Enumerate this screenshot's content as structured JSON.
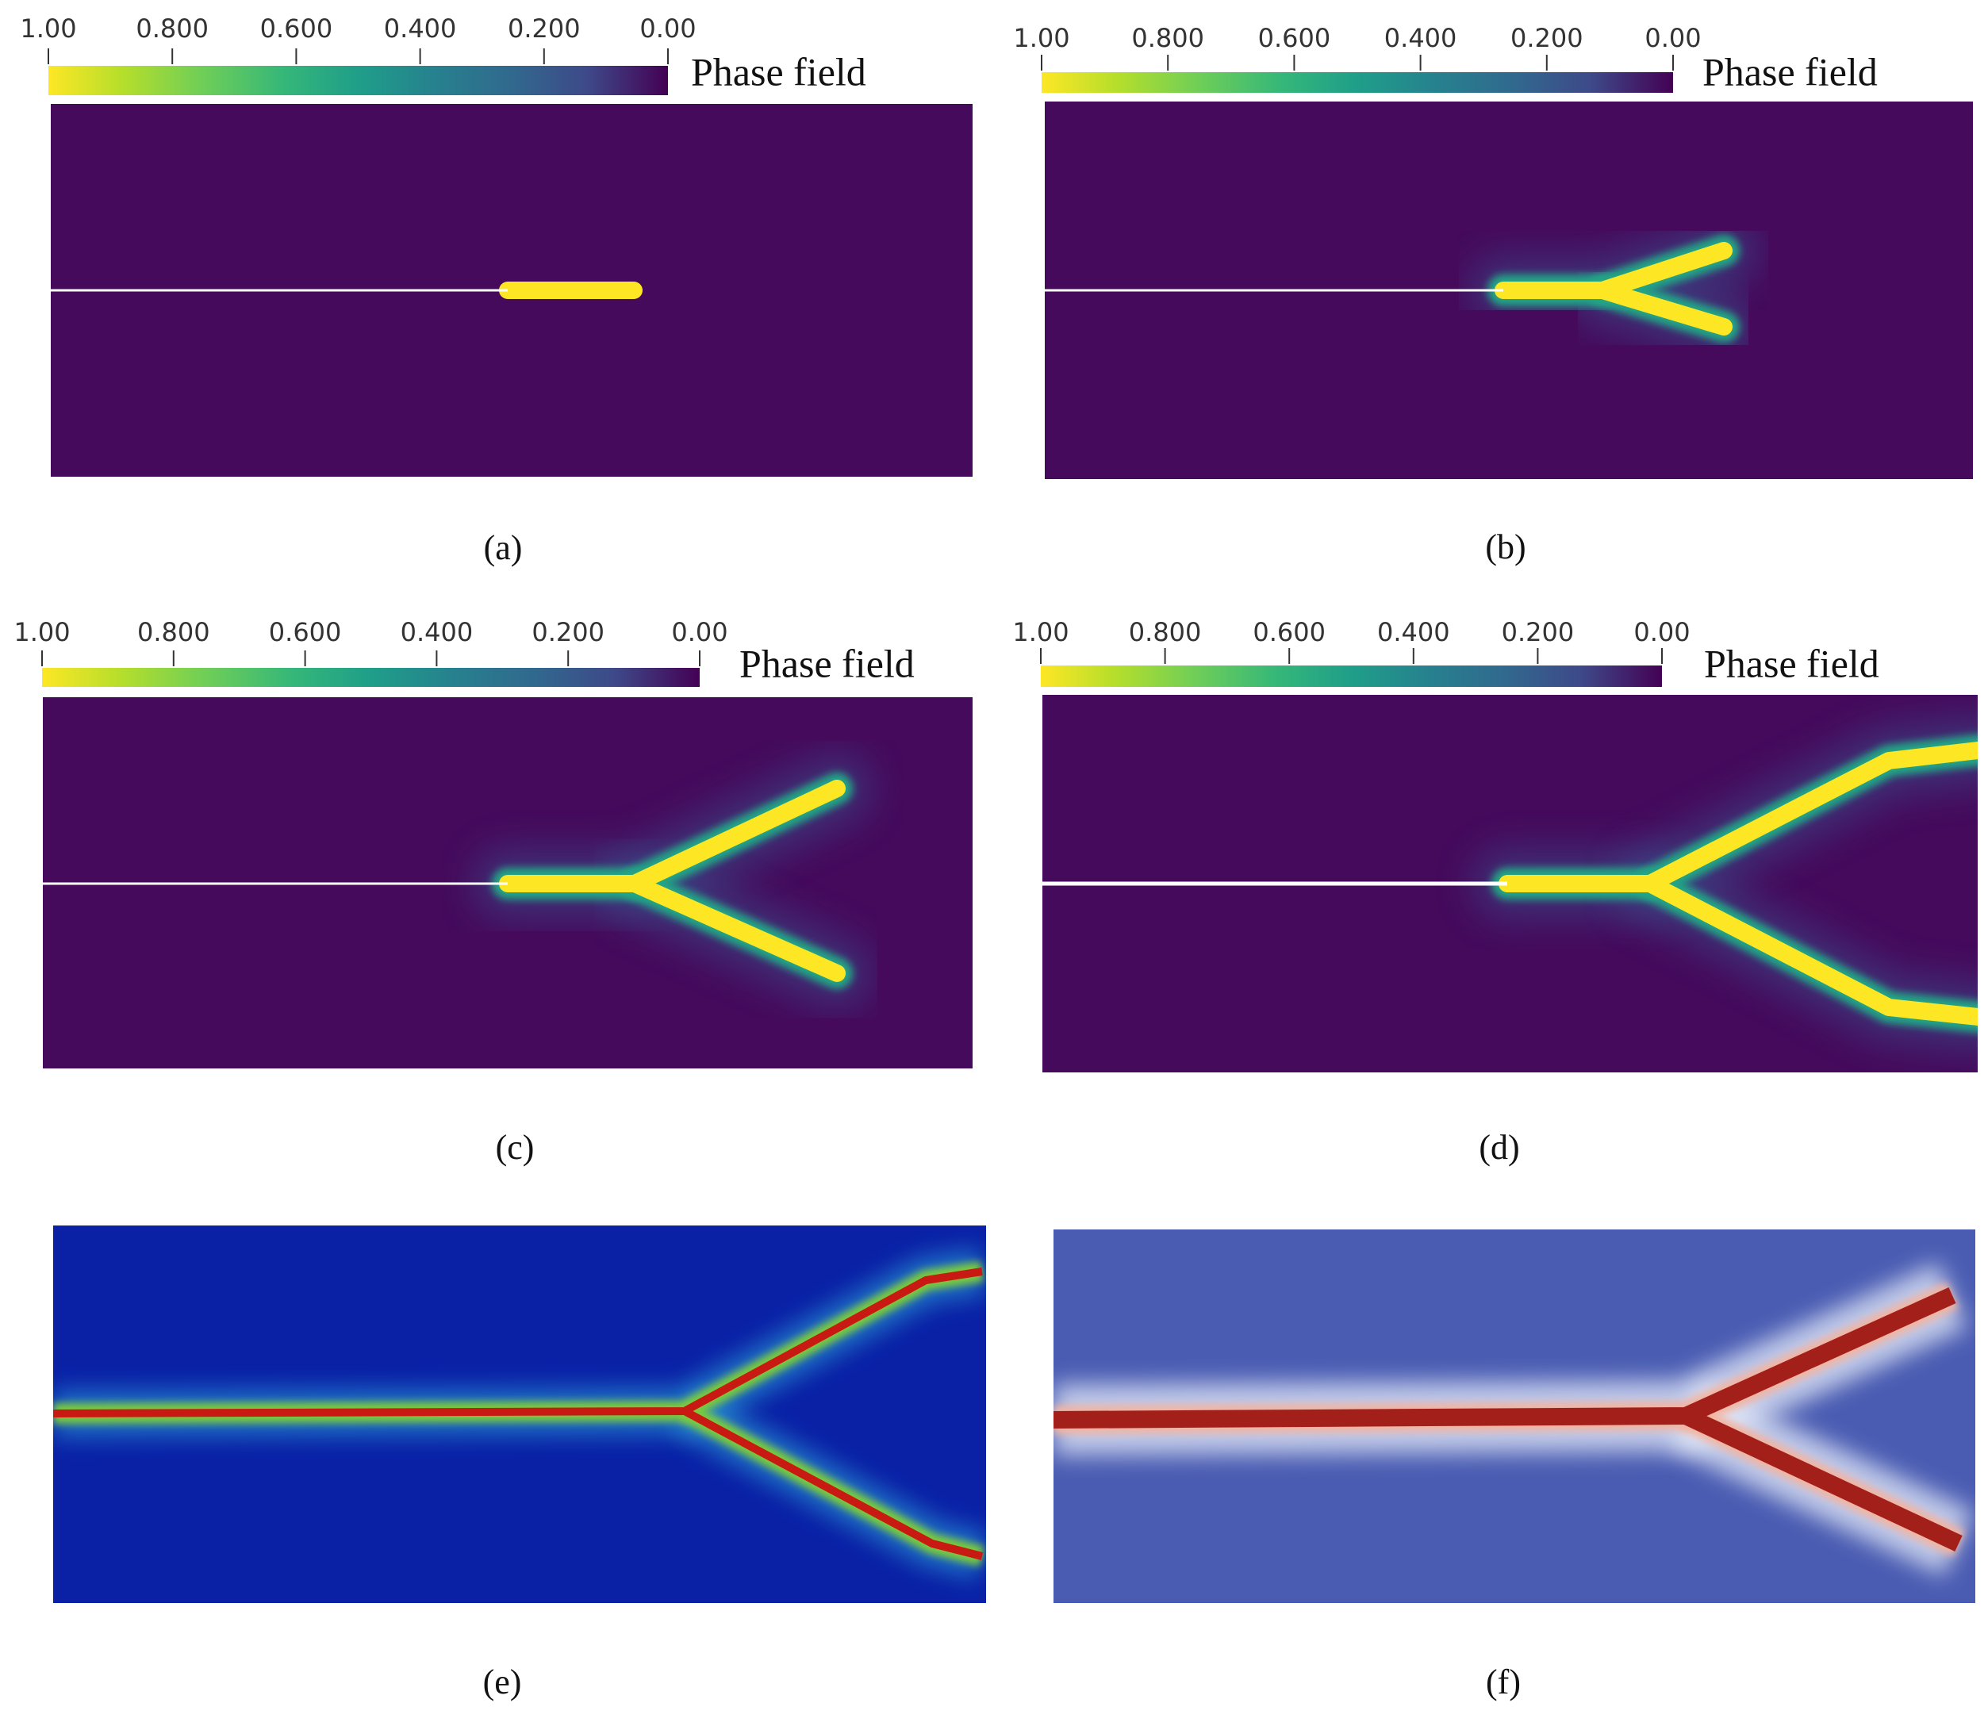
{
  "panels": [
    {
      "caption": "(a)",
      "colorbar": {
        "title": "Phase field",
        "ticks": [
          {
            "value": 1,
            "label": "1.00"
          },
          {
            "value": 0.8,
            "label": "0.800"
          },
          {
            "value": 0.6,
            "label": "0.600"
          },
          {
            "value": 0.4,
            "label": "0.400"
          },
          {
            "value": 0.2,
            "label": "0.200"
          },
          {
            "value": 0,
            "label": "0.00"
          }
        ]
      }
    },
    {
      "caption": "(b)",
      "colorbar": {
        "title": "Phase field",
        "ticks": [
          {
            "value": 1,
            "label": "1.00"
          },
          {
            "value": 0.8,
            "label": "0.800"
          },
          {
            "value": 0.6,
            "label": "0.600"
          },
          {
            "value": 0.4,
            "label": "0.400"
          },
          {
            "value": 0.2,
            "label": "0.200"
          },
          {
            "value": 0,
            "label": "0.00"
          }
        ]
      }
    },
    {
      "caption": "(c)",
      "colorbar": {
        "title": "Phase field",
        "ticks": [
          {
            "value": 1,
            "label": "1.00"
          },
          {
            "value": 0.8,
            "label": "0.800"
          },
          {
            "value": 0.6,
            "label": "0.600"
          },
          {
            "value": 0.4,
            "label": "0.400"
          },
          {
            "value": 0.2,
            "label": "0.200"
          },
          {
            "value": 0,
            "label": "0.00"
          }
        ]
      }
    },
    {
      "caption": "(d)",
      "colorbar": {
        "title": "Phase field",
        "ticks": [
          {
            "value": 1,
            "label": "1.00"
          },
          {
            "value": 0.8,
            "label": "0.800"
          },
          {
            "value": 0.6,
            "label": "0.600"
          },
          {
            "value": 0.4,
            "label": "0.400"
          },
          {
            "value": 0.2,
            "label": "0.200"
          },
          {
            "value": 0,
            "label": "0.00"
          }
        ]
      }
    },
    {
      "caption": "(e)"
    },
    {
      "caption": "(f)"
    }
  ]
}
